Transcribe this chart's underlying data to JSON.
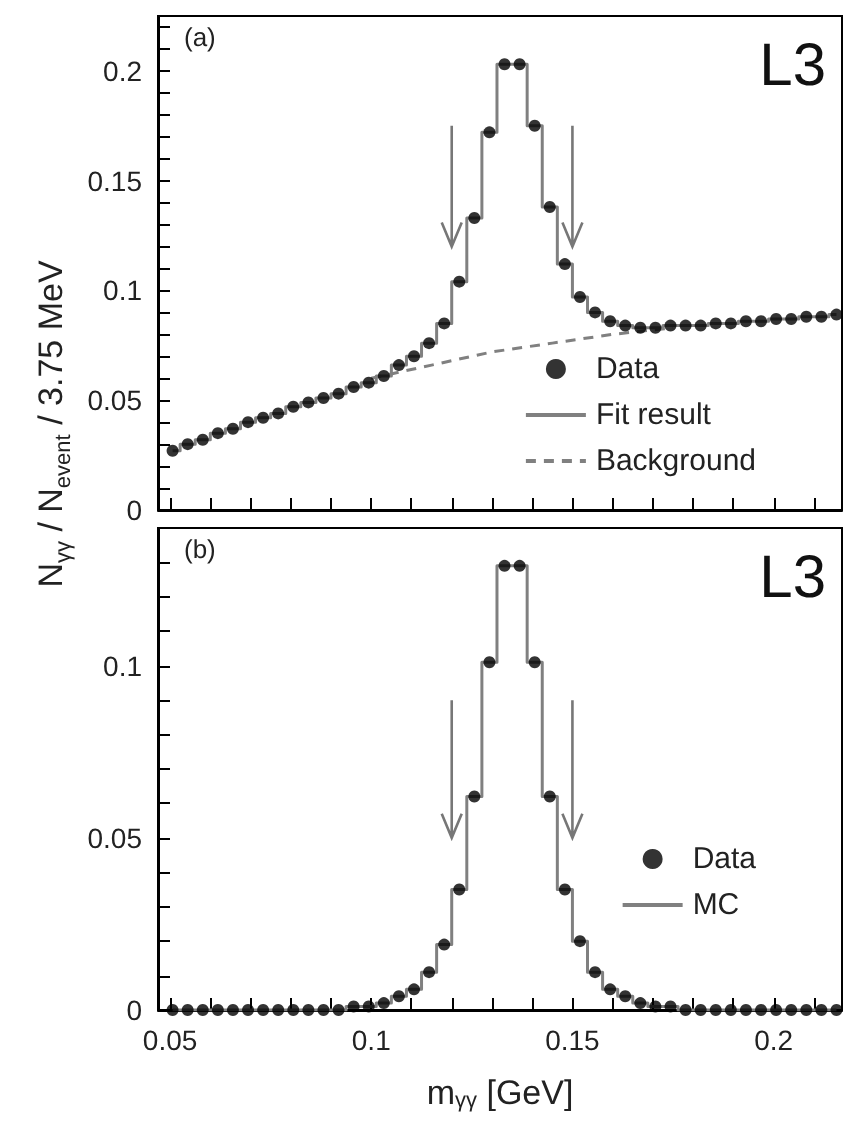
{
  "chart_data": [
    {
      "type": "scatter",
      "annotations": [
        "(a)",
        "L3"
      ],
      "tick_labels": "y",
      "legend": "right",
      "x": [
        0.050625,
        0.054375,
        0.058125,
        0.061875,
        0.065625,
        0.069375,
        0.073125,
        0.076875,
        0.080625,
        0.084375,
        0.088125,
        0.091875,
        0.095625,
        0.099375,
        0.103125,
        0.106875,
        0.110625,
        0.114375,
        0.118125,
        0.121875,
        0.125625,
        0.129375,
        0.133125,
        0.136875,
        0.140625,
        0.144375,
        0.148125,
        0.151875,
        0.155625,
        0.159375,
        0.163125,
        0.166875,
        0.170625,
        0.174375,
        0.178125,
        0.181875,
        0.185625,
        0.189375,
        0.193125,
        0.196875,
        0.200625,
        0.204375,
        0.208125,
        0.211875,
        0.215625
      ],
      "series": [
        {
          "name": "Data",
          "type": "scatter",
          "marker": "circle",
          "color": "#000000",
          "values": [
            0.027,
            0.03,
            0.032,
            0.035,
            0.037,
            0.04,
            0.042,
            0.044,
            0.047,
            0.049,
            0.051,
            0.053,
            0.056,
            0.058,
            0.061,
            0.066,
            0.07,
            0.076,
            0.085,
            0.104,
            0.133,
            0.172,
            0.203,
            0.203,
            0.175,
            0.138,
            0.112,
            0.097,
            0.09,
            0.086,
            0.084,
            0.083,
            0.083,
            0.084,
            0.084,
            0.084,
            0.085,
            0.085,
            0.086,
            0.086,
            0.087,
            0.087,
            0.088,
            0.088,
            0.089
          ]
        },
        {
          "name": "Fit result",
          "type": "step",
          "line_style": "solid",
          "color": "#808080",
          "values": [
            0.027,
            0.03,
            0.032,
            0.035,
            0.037,
            0.04,
            0.042,
            0.044,
            0.047,
            0.049,
            0.051,
            0.053,
            0.056,
            0.058,
            0.061,
            0.066,
            0.07,
            0.076,
            0.085,
            0.104,
            0.133,
            0.172,
            0.203,
            0.203,
            0.175,
            0.138,
            0.112,
            0.097,
            0.09,
            0.086,
            0.084,
            0.083,
            0.083,
            0.084,
            0.084,
            0.084,
            0.085,
            0.085,
            0.086,
            0.086,
            0.087,
            0.087,
            0.088,
            0.088,
            0.089
          ]
        },
        {
          "name": "Background",
          "type": "line",
          "line_style": "dashed",
          "color": "#808080",
          "x": [
            0.1,
            0.115,
            0.13,
            0.145,
            0.16,
            0.175
          ],
          "values": [
            0.06,
            0.066,
            0.072,
            0.076,
            0.08,
            0.083
          ]
        }
      ],
      "xlim": [
        0.047,
        0.217
      ],
      "xticks": [
        0.05,
        {
          "value": 0.06,
          "label": null
        },
        {
          "value": 0.07,
          "label": null
        },
        {
          "value": 0.08,
          "label": null
        },
        {
          "value": 0.09,
          "label": null
        },
        0.1,
        {
          "value": 0.11,
          "label": null
        },
        {
          "value": 0.12,
          "label": null
        },
        {
          "value": 0.13,
          "label": null
        },
        {
          "value": 0.14,
          "label": null
        },
        0.15,
        {
          "value": 0.16,
          "label": null
        },
        {
          "value": 0.17,
          "label": null
        },
        {
          "value": 0.18,
          "label": null
        },
        {
          "value": 0.19,
          "label": null
        },
        0.2,
        {
          "value": 0.21,
          "label": null
        }
      ],
      "ylim": [
        0,
        0.225
      ],
      "yticks": [
        0,
        {
          "value": 0.01,
          "label": null
        },
        {
          "value": 0.02,
          "label": null
        },
        {
          "value": 0.03,
          "label": null
        },
        {
          "value": 0.04,
          "label": null
        },
        0.05,
        {
          "value": 0.06,
          "label": null
        },
        {
          "value": 0.07,
          "label": null
        },
        {
          "value": 0.08,
          "label": null
        },
        {
          "value": 0.09,
          "label": null
        },
        0.1,
        {
          "value": 0.11,
          "label": null
        },
        {
          "value": 0.12,
          "label": null
        },
        {
          "value": 0.13,
          "label": null
        },
        {
          "value": 0.14,
          "label": null
        },
        0.15,
        {
          "value": 0.16,
          "label": null
        },
        {
          "value": 0.17,
          "label": null
        },
        {
          "value": 0.18,
          "label": null
        },
        {
          "value": 0.19,
          "label": null
        },
        0.2,
        {
          "value": 0.21,
          "label": null
        },
        {
          "value": 0.22,
          "label": null
        }
      ]
    },
    {
      "type": "scatter",
      "annotations": [
        "(b)",
        "L3"
      ],
      "legend": "right",
      "xlabel": "m$_{γγ}$ [GeV]",
      "ylabel": "N$_{γγ}$ / N$_{event}$ / 3.75 MeV",
      "x": [
        0.050625,
        0.054375,
        0.058125,
        0.061875,
        0.065625,
        0.069375,
        0.073125,
        0.076875,
        0.080625,
        0.084375,
        0.088125,
        0.091875,
        0.095625,
        0.099375,
        0.103125,
        0.106875,
        0.110625,
        0.114375,
        0.118125,
        0.121875,
        0.125625,
        0.129375,
        0.133125,
        0.136875,
        0.140625,
        0.144375,
        0.148125,
        0.151875,
        0.155625,
        0.159375,
        0.163125,
        0.166875,
        0.170625,
        0.174375,
        0.178125,
        0.181875,
        0.185625,
        0.189375,
        0.193125,
        0.196875,
        0.200625,
        0.204375,
        0.208125,
        0.211875,
        0.215625
      ],
      "series": [
        {
          "name": "Data",
          "type": "scatter",
          "marker": "circle",
          "color": "#000000",
          "values": [
            0,
            0,
            0,
            0,
            0,
            0,
            0,
            0,
            0,
            0,
            0,
            0,
            0.001,
            0.001,
            0.002,
            0.004,
            0.006,
            0.011,
            0.019,
            0.035,
            0.062,
            0.101,
            0.129,
            0.129,
            0.101,
            0.062,
            0.035,
            0.02,
            0.011,
            0.006,
            0.004,
            0.002,
            0.001,
            0.001,
            0,
            0,
            0,
            0,
            0,
            0,
            0,
            0,
            0,
            0,
            0
          ]
        },
        {
          "name": "MC",
          "type": "step",
          "line_style": "solid",
          "color": "#808080",
          "values": [
            0,
            0,
            0,
            0,
            0,
            0,
            0,
            0,
            0,
            0,
            0,
            0,
            0.001,
            0.001,
            0.002,
            0.004,
            0.006,
            0.011,
            0.019,
            0.035,
            0.062,
            0.101,
            0.129,
            0.129,
            0.101,
            0.062,
            0.035,
            0.02,
            0.011,
            0.006,
            0.004,
            0.002,
            0.001,
            0.001,
            0,
            0,
            0,
            0,
            0,
            0,
            0,
            0,
            0,
            0,
            0
          ]
        }
      ],
      "xlim": [
        0.047,
        0.217
      ],
      "xticks": [
        0.05,
        {
          "value": 0.06,
          "label": null
        },
        {
          "value": 0.07,
          "label": null
        },
        {
          "value": 0.08,
          "label": null
        },
        {
          "value": 0.09,
          "label": null
        },
        0.1,
        {
          "value": 0.11,
          "label": null
        },
        {
          "value": 0.12,
          "label": null
        },
        {
          "value": 0.13,
          "label": null
        },
        {
          "value": 0.14,
          "label": null
        },
        0.15,
        {
          "value": 0.16,
          "label": null
        },
        {
          "value": 0.17,
          "label": null
        },
        {
          "value": 0.18,
          "label": null
        },
        {
          "value": 0.19,
          "label": null
        },
        0.2,
        {
          "value": 0.21,
          "label": null
        }
      ],
      "ylim": [
        0,
        0.14
      ],
      "yticks": [
        0,
        {
          "value": 0.01,
          "label": null
        },
        {
          "value": 0.02,
          "label": null
        },
        {
          "value": 0.03,
          "label": null
        },
        {
          "value": 0.04,
          "label": null
        },
        0.05,
        {
          "value": 0.06,
          "label": null
        },
        {
          "value": 0.07,
          "label": null
        },
        {
          "value": 0.08,
          "label": null
        },
        {
          "value": 0.09,
          "label": null
        },
        0.1,
        {
          "value": 0.11,
          "label": null
        },
        {
          "value": 0.12,
          "label": null
        },
        {
          "value": 0.13,
          "label": null
        }
      ]
    }
  ]
}
